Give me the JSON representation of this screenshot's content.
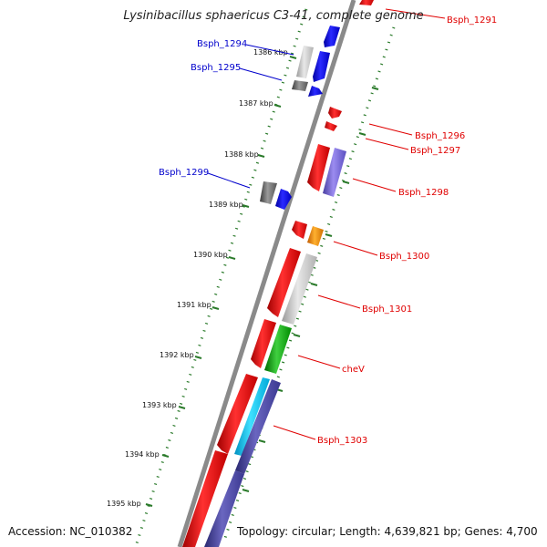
{
  "title": "Lysinibacillus sphaericus C3-41, complete genome",
  "footer": {
    "accession": "Accession: NC_010382",
    "summary": "Topology: circular; Length: 4,639,821 bp; Genes: 4,700"
  },
  "colors": {
    "forward_label": "#e00000",
    "reverse_label": "#0000cc",
    "backbone": "#8a8a8a",
    "tick": "#2a7a2a"
  },
  "scale_labels": [
    "1386 kbp",
    "1387 kbp",
    "1388 kbp",
    "1389 kbp",
    "1390 kbp",
    "1391 kbp",
    "1392 kbp",
    "1393 kbp",
    "1394 kbp",
    "1395 kbp"
  ],
  "gene_labels": [
    {
      "text": "Bsph_1291",
      "strand": "forward"
    },
    {
      "text": "Bsph_1294",
      "strand": "reverse"
    },
    {
      "text": "Bsph_1295",
      "strand": "reverse"
    },
    {
      "text": "Bsph_1296",
      "strand": "forward"
    },
    {
      "text": "Bsph_1297",
      "strand": "forward"
    },
    {
      "text": "Bsph_1298",
      "strand": "forward"
    },
    {
      "text": "Bsph_1299",
      "strand": "reverse"
    },
    {
      "text": "Bsph_1300",
      "strand": "forward"
    },
    {
      "text": "Bsph_1301",
      "strand": "forward"
    },
    {
      "text": "cheV",
      "strand": "forward"
    },
    {
      "text": "Bsph_1303",
      "strand": "forward"
    }
  ]
}
